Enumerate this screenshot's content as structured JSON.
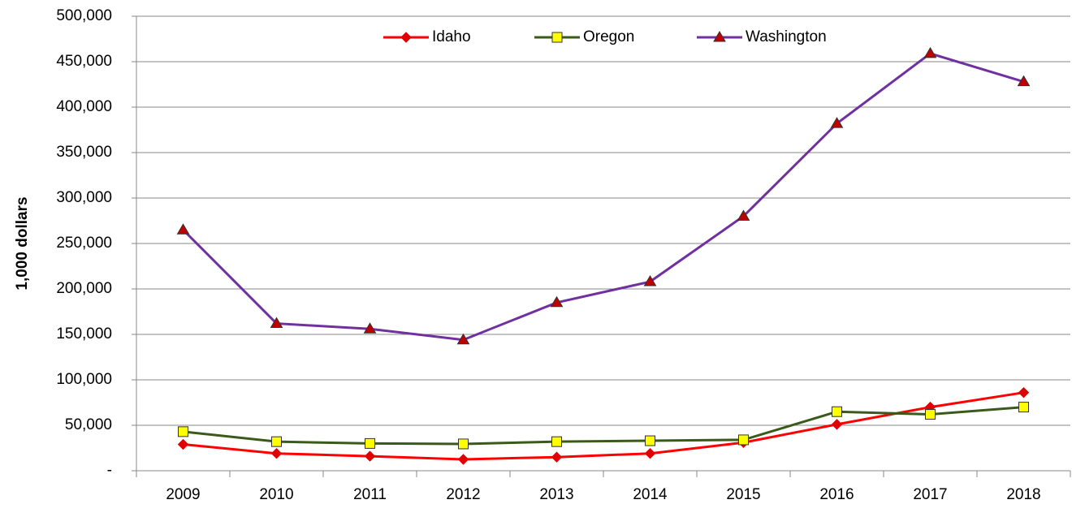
{
  "chart_data": {
    "type": "line",
    "y_label": "1,000 dollars",
    "categories": [
      "2009",
      "2010",
      "2011",
      "2012",
      "2013",
      "2014",
      "2015",
      "2016",
      "2017",
      "2018"
    ],
    "series": [
      {
        "name": "Idaho",
        "color": "#ff0000",
        "marker": "diamond",
        "marker_color": "#e00000",
        "values": [
          29000,
          19000,
          16000,
          12500,
          15000,
          19000,
          31000,
          51000,
          70000,
          86000
        ]
      },
      {
        "name": "Oregon",
        "color": "#3a5a1a",
        "marker": "square",
        "marker_color": "#ffff00",
        "values": [
          43000,
          32000,
          30000,
          29500,
          32000,
          33000,
          34000,
          65000,
          62000,
          70000
        ]
      },
      {
        "name": "Washington",
        "color": "#7030a0",
        "marker": "triangle",
        "marker_color": "#c00000",
        "values": [
          265000,
          162000,
          156000,
          144000,
          185000,
          208000,
          280000,
          382000,
          459000,
          428000
        ]
      }
    ],
    "ylim": [
      0,
      500000
    ],
    "yticks": [
      {
        "value": 0,
        "label": "-"
      },
      {
        "value": 50000,
        "label": "50,000"
      },
      {
        "value": 100000,
        "label": "100,000"
      },
      {
        "value": 150000,
        "label": "150,000"
      },
      {
        "value": 200000,
        "label": "200,000"
      },
      {
        "value": 250000,
        "label": "250,000"
      },
      {
        "value": 300000,
        "label": "300,000"
      },
      {
        "value": 350000,
        "label": "350,000"
      },
      {
        "value": 400000,
        "label": "400,000"
      },
      {
        "value": 450000,
        "label": "450,000"
      },
      {
        "value": 500000,
        "label": "500,000"
      }
    ],
    "grid": true,
    "legend": "top"
  }
}
